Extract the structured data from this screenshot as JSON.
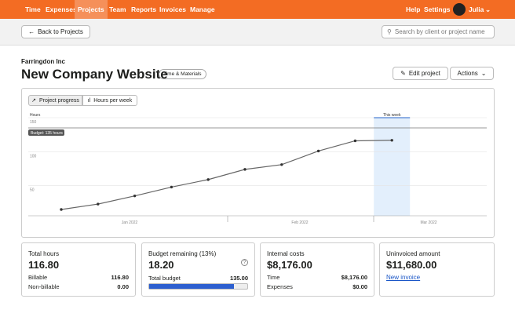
{
  "nav": {
    "items": [
      "Time",
      "Expenses",
      "Projects",
      "Team",
      "Reports",
      "Invoices",
      "Manage"
    ],
    "active": 2,
    "right": [
      "Help",
      "Settings"
    ],
    "user": "Julia"
  },
  "toolbar": {
    "back": "Back to Projects",
    "search_placeholder": "Search by client or project name"
  },
  "header": {
    "client": "Farringdon Inc",
    "title": "New Company Website",
    "badge": "Time & Materials",
    "edit": "Edit project",
    "actions": "Actions"
  },
  "tabs": [
    "Project progress",
    "Hours per week"
  ],
  "chart": {
    "type": "line",
    "y_label": "Hours",
    "ylim": [
      0,
      150
    ],
    "yticks": [
      50,
      100,
      150
    ],
    "grid": true,
    "color": "#666666",
    "values": [
      15,
      23,
      35,
      48,
      59,
      74,
      81,
      101,
      116,
      116.8
    ],
    "budget": {
      "value": 135,
      "label": "Budget: 135 hours"
    },
    "highlight": {
      "index": 9,
      "label": "This week"
    },
    "x_labels": [
      "Jan 2022",
      "Feb 2022",
      "Mar 2022"
    ]
  },
  "cards": [
    {
      "title": "Total hours",
      "value": "116.80",
      "rows": [
        [
          "Billable",
          "116.80"
        ],
        [
          "Non-billable",
          "0.00"
        ]
      ]
    },
    {
      "title": "Budget remaining (13%)",
      "value": "18.20",
      "rows": [
        [
          "Total budget",
          "135.00"
        ]
      ]
    },
    {
      "title": "Internal costs",
      "value": "$8,176.00",
      "rows": [
        [
          "Time",
          "$8,176.00"
        ],
        [
          "Expenses",
          "$0.00"
        ]
      ]
    },
    {
      "title": "Uninvoiced amount",
      "value": "$11,680.00",
      "link": "New invoice"
    }
  ]
}
